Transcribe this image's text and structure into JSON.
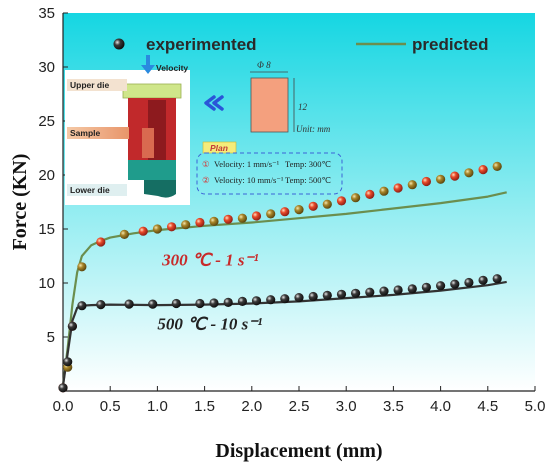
{
  "chart_data": {
    "type": "line",
    "xlabel": "Displacement (mm)",
    "ylabel": "Force (KN)",
    "xlim": [
      0.0,
      5.0
    ],
    "ylim": [
      0,
      35
    ],
    "xticks": [
      "0.0",
      "0.5",
      "1.0",
      "1.5",
      "2.0",
      "2.5",
      "3.0",
      "3.5",
      "4.0",
      "4.5",
      "5.0"
    ],
    "yticks": [
      "5",
      "10",
      "15",
      "20",
      "25",
      "30",
      "35"
    ],
    "legend": {
      "position": "top",
      "entries": [
        {
          "label": "experimented",
          "marker": "sphere"
        },
        {
          "label": "predicted",
          "marker": "line"
        }
      ]
    },
    "series": [
      {
        "condition": "300 ℃ - 1 s⁻¹",
        "kind": "predicted",
        "color": "#6b8e4e",
        "x": [
          0.0,
          0.05,
          0.1,
          0.15,
          0.2,
          0.3,
          0.4,
          0.5,
          0.75,
          1.0,
          1.5,
          2.0,
          2.5,
          3.0,
          3.5,
          4.0,
          4.5,
          4.7
        ],
        "y": [
          0.5,
          4.0,
          8.0,
          11.0,
          12.5,
          13.5,
          13.9,
          14.2,
          14.6,
          14.9,
          15.3,
          15.6,
          16.0,
          16.4,
          16.9,
          17.4,
          18.0,
          18.4
        ]
      },
      {
        "condition": "300 ℃ - 1 s⁻¹",
        "kind": "experimented",
        "color": "#d82828",
        "x": [
          0.0,
          0.05,
          0.1,
          0.2,
          0.4,
          0.65,
          0.85,
          1.0,
          1.15,
          1.3,
          1.45,
          1.6,
          1.75,
          1.9,
          2.05,
          2.2,
          2.35,
          2.5,
          2.65,
          2.8,
          2.95,
          3.1,
          3.25,
          3.4,
          3.55,
          3.7,
          3.85,
          4.0,
          4.15,
          4.3,
          4.45,
          4.6
        ],
        "y": [
          0.3,
          2.2,
          6.0,
          11.5,
          13.8,
          14.5,
          14.8,
          15.0,
          15.2,
          15.4,
          15.6,
          15.7,
          15.9,
          16.0,
          16.2,
          16.4,
          16.6,
          16.8,
          17.1,
          17.3,
          17.6,
          17.9,
          18.2,
          18.5,
          18.8,
          19.1,
          19.4,
          19.6,
          19.9,
          20.2,
          20.5,
          20.8
        ]
      },
      {
        "condition": "500 ℃ - 10 s⁻¹",
        "kind": "predicted",
        "color": "#333333",
        "x": [
          0.0,
          0.05,
          0.1,
          0.15,
          0.2,
          0.3,
          0.5,
          1.0,
          1.5,
          2.0,
          2.5,
          3.0,
          3.5,
          4.0,
          4.5,
          4.7
        ],
        "y": [
          0.5,
          3.5,
          6.5,
          7.7,
          7.9,
          7.95,
          8.0,
          7.95,
          8.0,
          8.1,
          8.3,
          8.6,
          8.9,
          9.3,
          9.8,
          10.1
        ]
      },
      {
        "condition": "500 ℃ - 10 s⁻¹",
        "kind": "experimented",
        "color": "#2a2a2a",
        "x": [
          0.0,
          0.05,
          0.1,
          0.2,
          0.4,
          0.7,
          0.95,
          1.2,
          1.45,
          1.6,
          1.75,
          1.9,
          2.05,
          2.2,
          2.35,
          2.5,
          2.65,
          2.8,
          2.95,
          3.1,
          3.25,
          3.4,
          3.55,
          3.7,
          3.85,
          4.0,
          4.15,
          4.3,
          4.45,
          4.6
        ],
        "y": [
          0.3,
          2.7,
          6.0,
          7.9,
          8.0,
          8.05,
          8.05,
          8.1,
          8.1,
          8.15,
          8.2,
          8.3,
          8.35,
          8.45,
          8.55,
          8.65,
          8.75,
          8.85,
          8.95,
          9.05,
          9.15,
          9.25,
          9.35,
          9.45,
          9.6,
          9.75,
          9.9,
          10.05,
          10.25,
          10.4
        ]
      }
    ],
    "annotations": [
      {
        "text": "300 ℃ - 1 s⁻¹",
        "color": "#c82a2a",
        "at": [
          1.05,
          11.6
        ]
      },
      {
        "text": "500 ℃ - 10 s⁻¹",
        "color": "#222222",
        "at": [
          1.0,
          5.7
        ]
      }
    ],
    "background": {
      "gradient_top": "#15d6e2",
      "gradient_bottom": "#ffffff"
    }
  },
  "inset": {
    "velocity_label": "Velocity",
    "upper_die_label": "Upper die",
    "sample_label": "Sample",
    "lower_die_label": "Lower die",
    "plan_label": "Plan",
    "dimension_diameter": "Φ 8",
    "dimension_height": "12",
    "unit_label": "Unit: mm",
    "plan_rows": [
      {
        "index": "①",
        "velocity": "Velocity: 1 mm/s⁻¹",
        "temp": "Temp: 300℃"
      },
      {
        "index": "②",
        "velocity": "Velocity: 10 mm/s⁻¹",
        "temp": "Temp: 500℃"
      }
    ]
  }
}
